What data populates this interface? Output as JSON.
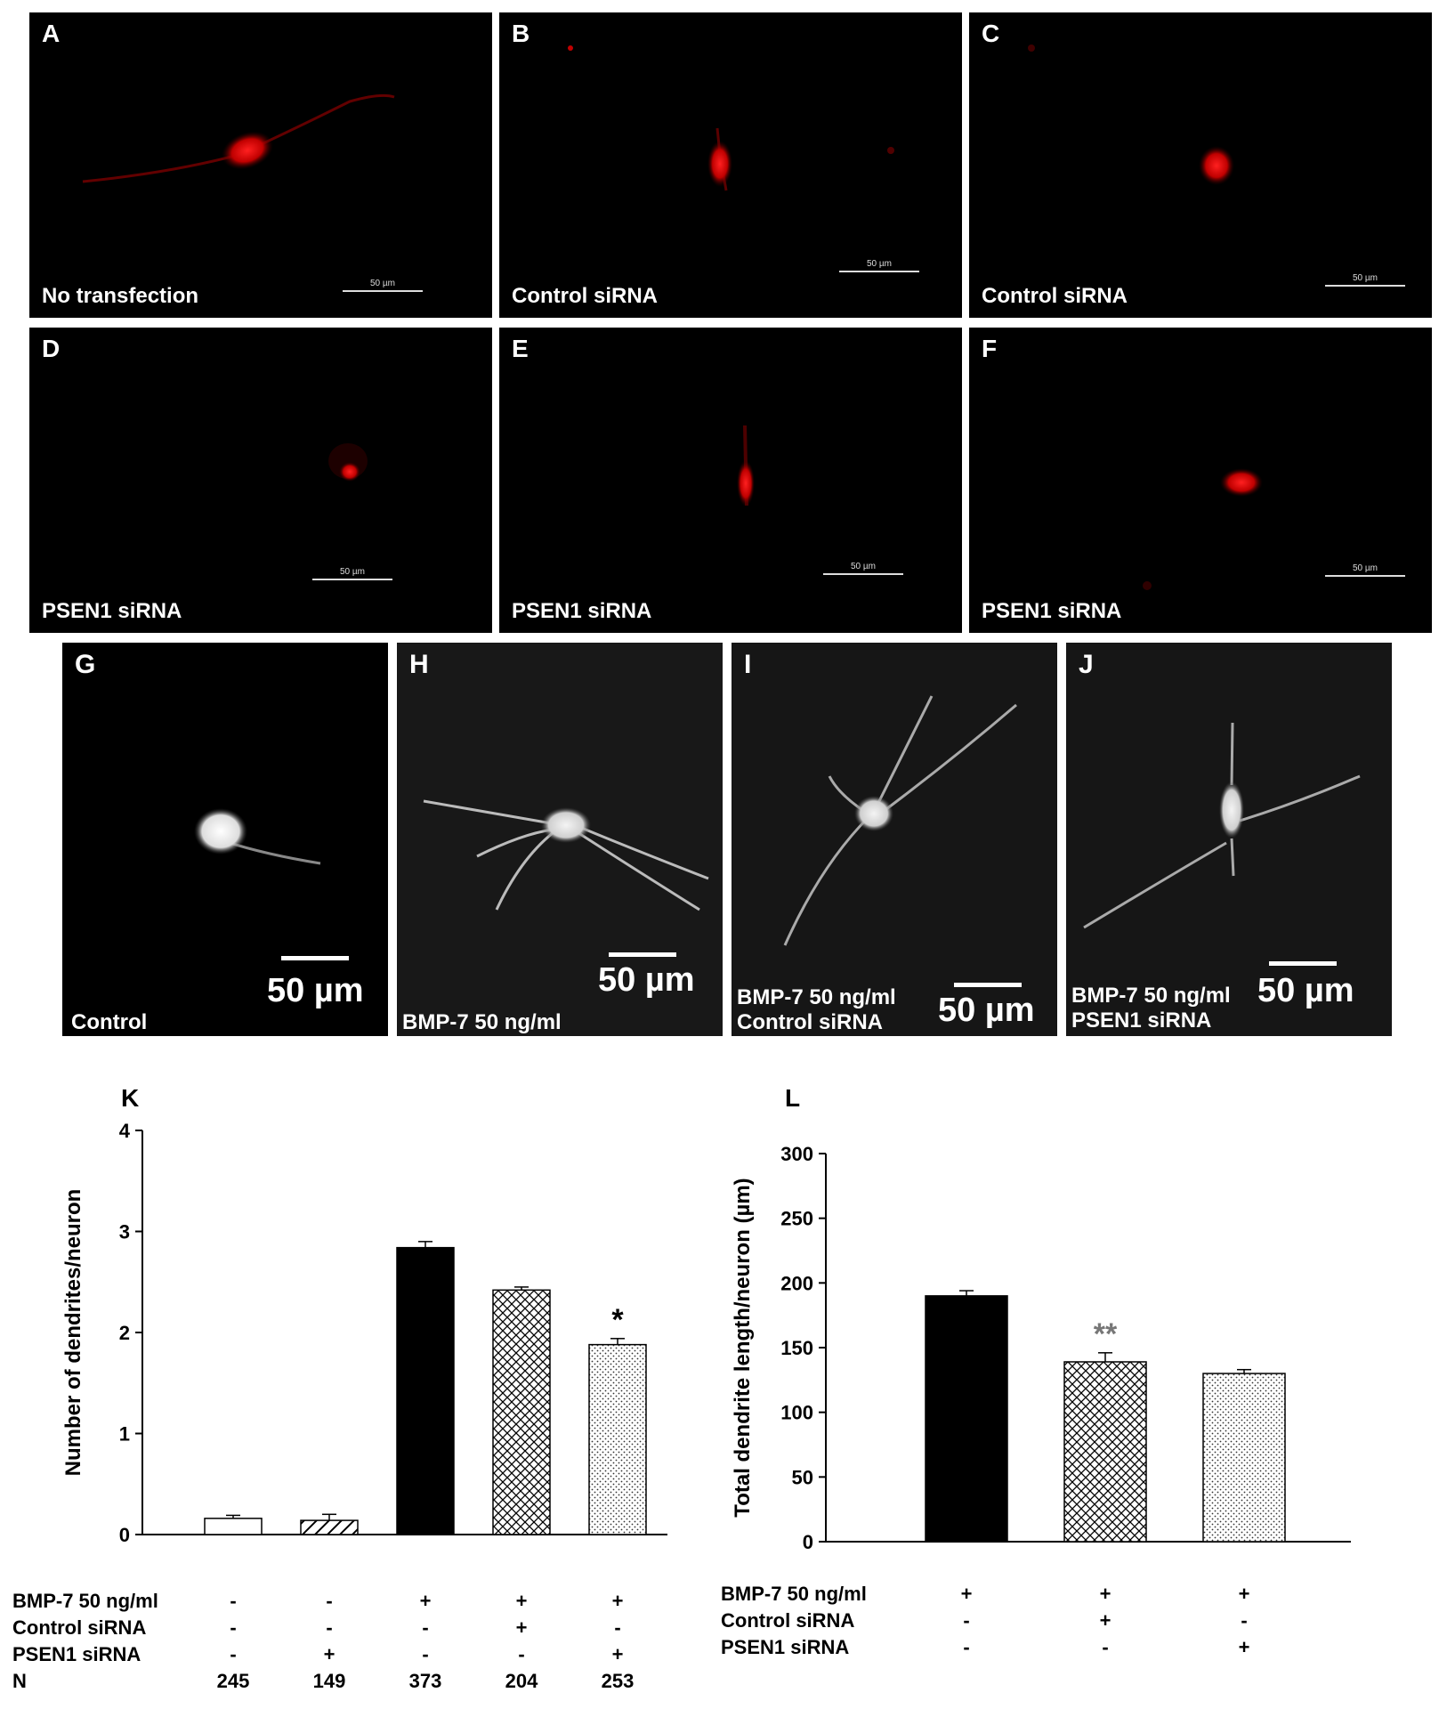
{
  "micrographs": {
    "top": [
      {
        "letter": "A",
        "caption": "No transfection",
        "scale": "50 µm"
      },
      {
        "letter": "B",
        "caption": "Control siRNA",
        "scale": "50 µm"
      },
      {
        "letter": "C",
        "caption": "Control siRNA",
        "scale": "50 µm"
      },
      {
        "letter": "D",
        "caption": "PSEN1 siRNA",
        "scale": "50 µm"
      },
      {
        "letter": "E",
        "caption": "PSEN1 siRNA",
        "scale": "50 µm"
      },
      {
        "letter": "F",
        "caption": "PSEN1 siRNA",
        "scale": "50 µm"
      }
    ],
    "bottom": [
      {
        "letter": "G",
        "caption1": "Control",
        "caption2": "",
        "scale": "50 µm"
      },
      {
        "letter": "H",
        "caption1": "BMP-7 50 ng/ml",
        "caption2": "",
        "scale": "50 µm"
      },
      {
        "letter": "I",
        "caption1": "BMP-7 50 ng/ml",
        "caption2": "Control siRNA",
        "scale": "50 µm"
      },
      {
        "letter": "J",
        "caption1": "BMP-7 50 ng/ml",
        "caption2": "PSEN1 siRNA",
        "scale": "50 µm"
      }
    ]
  },
  "colors": {
    "fluorescence_red": "#e01010",
    "background": "#000000",
    "bar_black": "#000000"
  },
  "chart_data": [
    {
      "panel": "K",
      "type": "bar",
      "ylabel": "Number of dendrites/neuron",
      "ylim": [
        0,
        4
      ],
      "yticks": [
        "0",
        "1",
        "2",
        "3",
        "4"
      ],
      "values": [
        0.16,
        0.14,
        2.84,
        2.42,
        1.88
      ],
      "errors": [
        0.03,
        0.06,
        0.06,
        0.03,
        0.06
      ],
      "fills": [
        "white",
        "diagonal",
        "black",
        "crosshatch",
        "dots"
      ],
      "annotations": [
        {
          "bar": 4,
          "text": "*"
        }
      ],
      "conditions": [
        {
          "label": "BMP-7 50 ng/ml",
          "values": [
            "-",
            "-",
            "+",
            "+",
            "+"
          ]
        },
        {
          "label": "Control siRNA",
          "values": [
            "-",
            "-",
            "-",
            "+",
            "-"
          ]
        },
        {
          "label": "PSEN1 siRNA",
          "values": [
            "-",
            "+",
            "-",
            "-",
            "+"
          ]
        },
        {
          "label": "N",
          "values": [
            "245",
            "149",
            "373",
            "204",
            "253"
          ]
        }
      ]
    },
    {
      "panel": "L",
      "type": "bar",
      "ylabel": "Total dendrite length/neuron (µm)",
      "ylim": [
        0,
        300
      ],
      "yticks": [
        "0",
        "50",
        "100",
        "150",
        "200",
        "250",
        "300"
      ],
      "values": [
        190,
        139,
        130
      ],
      "errors": [
        4,
        7,
        3
      ],
      "fills": [
        "black",
        "crosshatch",
        "dots"
      ],
      "annotations": [
        {
          "bar": 1,
          "text": "**"
        }
      ],
      "conditions": [
        {
          "label": "BMP-7 50 ng/ml",
          "values": [
            "+",
            "+",
            "+"
          ]
        },
        {
          "label": "Control siRNA",
          "values": [
            "-",
            "+",
            "-"
          ]
        },
        {
          "label": "PSEN1 siRNA",
          "values": [
            "-",
            "-",
            "+"
          ]
        }
      ]
    }
  ]
}
